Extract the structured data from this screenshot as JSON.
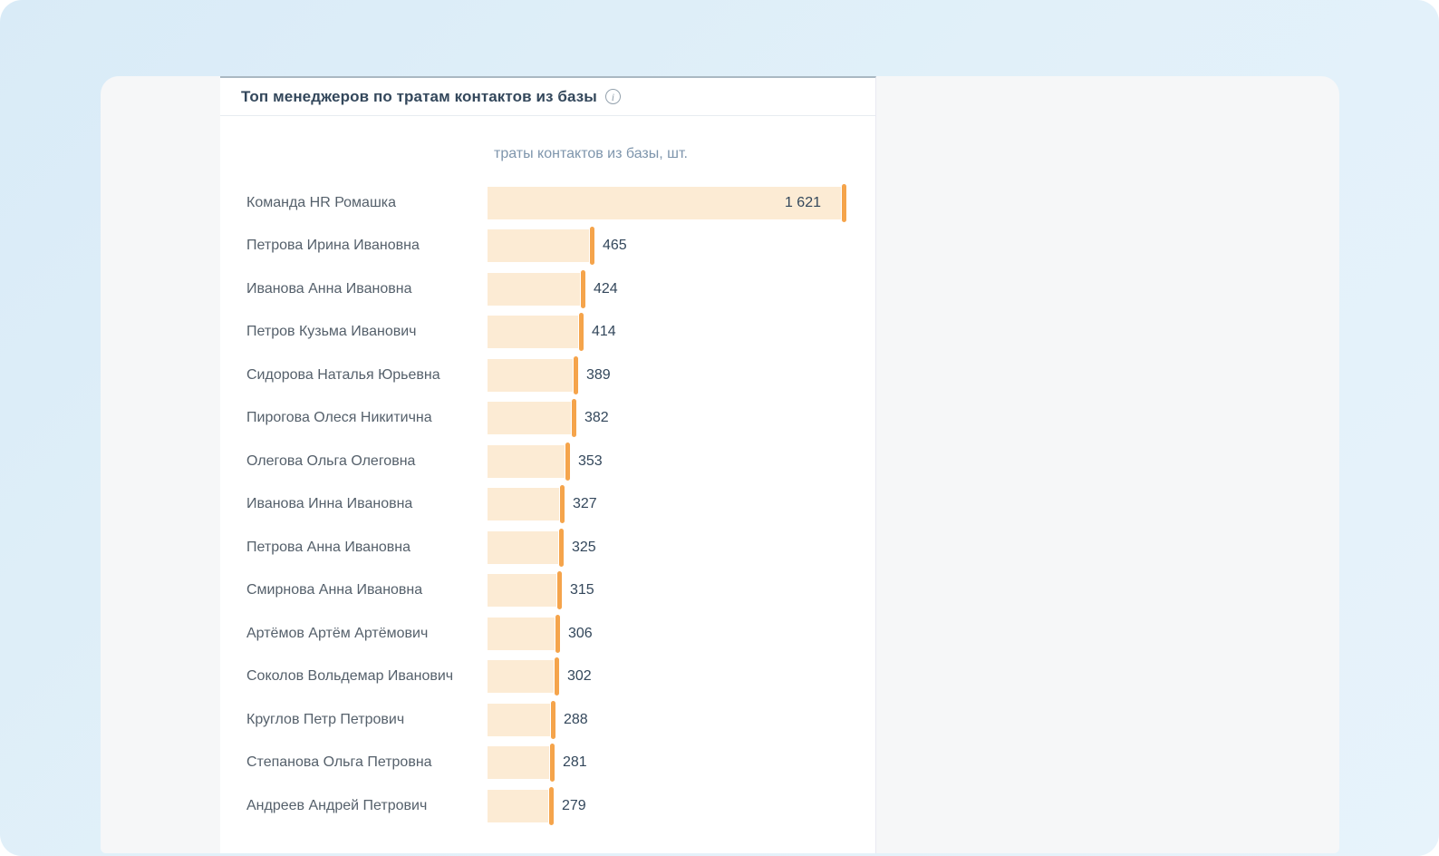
{
  "widget": {
    "title": "Топ менеджеров по тратам контактов из базы",
    "info_icon_glyph": "i"
  },
  "chart_data": {
    "type": "bar",
    "orientation": "horizontal",
    "title": "Топ менеджеров по тратам контактов из базы",
    "value_axis_label": "траты контактов из базы, шт.",
    "unit": "шт.",
    "categories": [
      "Команда HR Ромашка",
      "Петрова Ирина Ивановна",
      "Иванова Анна Ивановна",
      "Петров Кузьма Иванович",
      "Сидорова Наталья Юрьевна",
      "Пирогова Олеся Никитична",
      "Олегова Ольга Олеговна",
      "Иванова Инна Ивановна",
      "Петрова Анна Ивановна",
      "Смирнова Анна Ивановна",
      "Артёмов Артём Артёмович",
      "Соколов Вольдемар Иванович",
      "Круглов Петр Петрович",
      "Степанова Ольга Петровна",
      "Андреев Андрей Петрович"
    ],
    "values": [
      1621,
      465,
      424,
      414,
      389,
      382,
      353,
      327,
      325,
      315,
      306,
      302,
      288,
      281,
      279
    ],
    "value_labels": [
      "1 621",
      "465",
      "424",
      "414",
      "389",
      "382",
      "353",
      "327",
      "325",
      "315",
      "306",
      "302",
      "288",
      "281",
      "279"
    ],
    "xlim": [
      0,
      1680
    ],
    "grid": "off",
    "legend": "none",
    "colors": {
      "bar_fill": "#fcebd4",
      "bar_cap": "#f5a44b",
      "value_text": "#33475b",
      "category_text": "#55606b",
      "axis_label_text": "#7e95ac"
    }
  }
}
